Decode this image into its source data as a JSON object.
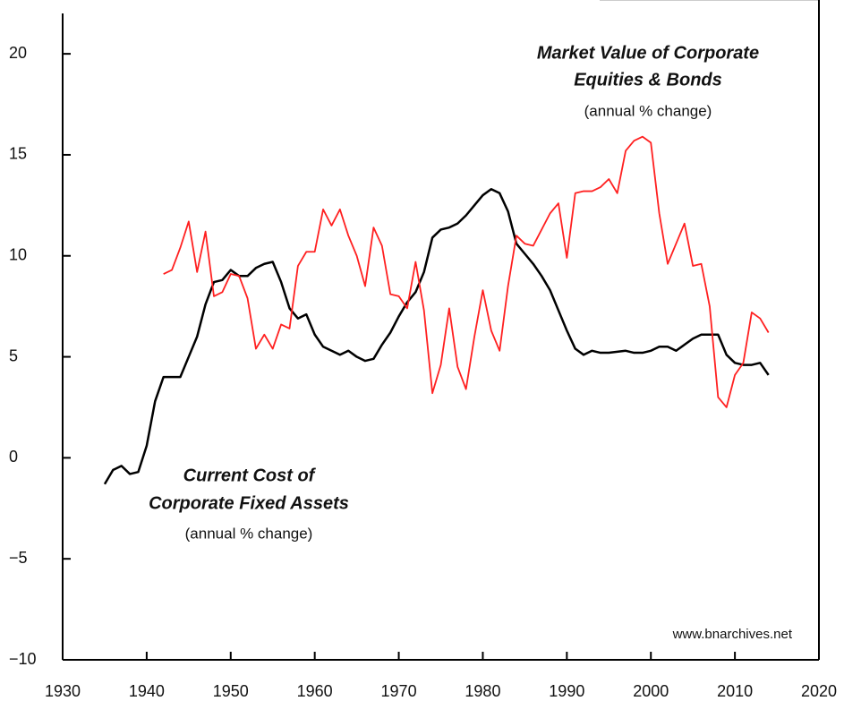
{
  "chart_data": {
    "type": "line",
    "x": [
      1935,
      1936,
      1937,
      1938,
      1939,
      1940,
      1941,
      1942,
      1943,
      1944,
      1945,
      1946,
      1947,
      1948,
      1949,
      1950,
      1951,
      1952,
      1953,
      1954,
      1955,
      1956,
      1957,
      1958,
      1959,
      1960,
      1961,
      1962,
      1963,
      1964,
      1965,
      1966,
      1967,
      1968,
      1969,
      1970,
      1971,
      1972,
      1973,
      1974,
      1975,
      1976,
      1977,
      1978,
      1979,
      1980,
      1981,
      1982,
      1983,
      1984,
      1985,
      1986,
      1987,
      1988,
      1989,
      1990,
      1991,
      1992,
      1993,
      1994,
      1995,
      1996,
      1997,
      1998,
      1999,
      2000,
      2001,
      2002,
      2003,
      2004,
      2005,
      2006,
      2007,
      2008,
      2009,
      2010,
      2011,
      2012,
      2013,
      2014
    ],
    "series": [
      {
        "label_lines": [
          "Current Cost of",
          "Corporate Fixed Assets"
        ],
        "sublabel": "(annual % change)",
        "color": "#000000",
        "values": [
          -1.3,
          -0.6,
          -0.4,
          -0.8,
          -0.7,
          0.6,
          2.8,
          4.0,
          4.0,
          4.0,
          5.0,
          6.0,
          7.6,
          8.7,
          8.8,
          9.3,
          9.0,
          9.0,
          9.4,
          9.6,
          9.7,
          8.7,
          7.4,
          6.9,
          7.1,
          6.1,
          5.5,
          5.3,
          5.1,
          5.3,
          5.0,
          4.8,
          4.9,
          5.6,
          6.2,
          7.0,
          7.7,
          8.2,
          9.2,
          10.9,
          11.3,
          11.4,
          11.6,
          12.0,
          12.5,
          13.0,
          13.3,
          13.1,
          12.2,
          10.6,
          10.1,
          9.6,
          9.0,
          8.3,
          7.3,
          6.3,
          5.4,
          5.1,
          5.3,
          5.2,
          5.2,
          5.25,
          5.3,
          5.2,
          5.2,
          5.3,
          5.5,
          5.5,
          5.3,
          5.6,
          5.9,
          6.1,
          6.1,
          6.1,
          5.1,
          4.7,
          4.6,
          4.6,
          4.7,
          4.1
        ]
      },
      {
        "label_lines": [
          "Market Value of Corporate",
          "Equities & Bonds"
        ],
        "sublabel": "(annual % change)",
        "color": "#ff2020",
        "values": [
          null,
          null,
          null,
          null,
          null,
          null,
          null,
          9.1,
          9.3,
          10.4,
          11.7,
          9.2,
          11.2,
          8.0,
          8.2,
          9.1,
          9.0,
          7.9,
          5.4,
          6.1,
          5.4,
          6.6,
          6.4,
          9.5,
          10.2,
          10.2,
          12.3,
          11.5,
          12.3,
          11.0,
          10.0,
          8.5,
          11.4,
          10.5,
          8.1,
          8.0,
          7.4,
          9.7,
          7.3,
          3.2,
          4.6,
          7.4,
          4.5,
          3.4,
          6.0,
          8.3,
          6.3,
          5.3,
          8.5,
          11.0,
          10.6,
          10.5,
          11.3,
          12.1,
          12.6,
          9.9,
          13.1,
          13.2,
          13.2,
          13.4,
          13.8,
          13.1,
          15.2,
          15.7,
          15.9,
          15.6,
          12.1,
          9.6,
          10.6,
          11.6,
          9.5,
          9.6,
          7.5,
          3.0,
          2.5,
          4.1,
          4.7,
          7.2,
          6.9,
          6.2
        ]
      }
    ],
    "xlim": [
      1930,
      2020
    ],
    "xticks": [
      1930,
      1940,
      1950,
      1960,
      1970,
      1980,
      1990,
      2000,
      2010,
      2020
    ],
    "ylim": [
      -10,
      22
    ],
    "yticks": [
      {
        "value": -10,
        "label": "−10"
      },
      {
        "value": -5,
        "label": "−5"
      },
      0,
      5,
      10,
      15,
      20
    ],
    "watermark": "www.bnarchives.net"
  }
}
